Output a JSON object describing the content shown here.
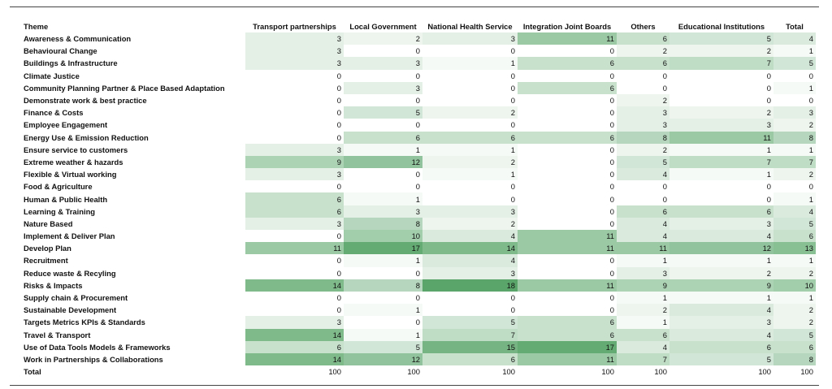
{
  "chart_data": {
    "type": "heatmap",
    "title": "",
    "header_label": "Theme",
    "columns": [
      "Transport partnerships",
      "Local Government",
      "National Health Service",
      "Integration Joint Boards",
      "Others",
      "Educational Institutions",
      "Total"
    ],
    "rows": [
      {
        "theme": "Awareness & Communication",
        "values": [
          3,
          2,
          3,
          11,
          6,
          5,
          4
        ]
      },
      {
        "theme": "Behavioural Change",
        "values": [
          3,
          0,
          0,
          0,
          2,
          2,
          1
        ]
      },
      {
        "theme": "Buildings & Infrastructure",
        "values": [
          3,
          3,
          1,
          6,
          6,
          7,
          5
        ]
      },
      {
        "theme": "Climate Justice",
        "values": [
          0,
          0,
          0,
          0,
          0,
          0,
          0
        ]
      },
      {
        "theme": "Community Planning Partner & Place Based Adaptation",
        "values": [
          0,
          3,
          0,
          6,
          0,
          0,
          1
        ]
      },
      {
        "theme": "Demonstrate work & best practice",
        "values": [
          0,
          0,
          0,
          0,
          2,
          0,
          0
        ]
      },
      {
        "theme": "Finance & Costs",
        "values": [
          0,
          5,
          2,
          0,
          3,
          2,
          3
        ]
      },
      {
        "theme": "Employee Engagement",
        "values": [
          0,
          0,
          0,
          0,
          3,
          3,
          2
        ]
      },
      {
        "theme": "Energy Use & Emission Reduction",
        "values": [
          0,
          6,
          6,
          6,
          8,
          11,
          8
        ]
      },
      {
        "theme": "Ensure service to customers",
        "values": [
          3,
          1,
          1,
          0,
          2,
          1,
          1
        ]
      },
      {
        "theme": "Extreme weather & hazards",
        "values": [
          9,
          12,
          2,
          0,
          5,
          7,
          7
        ]
      },
      {
        "theme": "Flexible & Virtual working",
        "values": [
          3,
          0,
          1,
          0,
          4,
          1,
          2
        ]
      },
      {
        "theme": "Food & Agriculture",
        "values": [
          0,
          0,
          0,
          0,
          0,
          0,
          0
        ]
      },
      {
        "theme": "Human & Public Health",
        "values": [
          6,
          1,
          0,
          0,
          0,
          0,
          1
        ]
      },
      {
        "theme": "Learning & Training",
        "values": [
          6,
          3,
          3,
          0,
          6,
          6,
          4
        ]
      },
      {
        "theme": "Nature Based",
        "values": [
          3,
          8,
          2,
          0,
          4,
          3,
          5
        ]
      },
      {
        "theme": "Implement & Deliver Plan",
        "values": [
          0,
          10,
          4,
          11,
          4,
          4,
          6
        ]
      },
      {
        "theme": "Develop Plan",
        "values": [
          11,
          17,
          14,
          11,
          11,
          12,
          13
        ]
      },
      {
        "theme": "Recruitment",
        "values": [
          0,
          1,
          4,
          0,
          1,
          1,
          1
        ]
      },
      {
        "theme": "Reduce waste & Recyling",
        "values": [
          0,
          0,
          3,
          0,
          3,
          2,
          2
        ]
      },
      {
        "theme": "Risks & Impacts",
        "values": [
          14,
          8,
          18,
          11,
          9,
          9,
          10
        ]
      },
      {
        "theme": "Supply chain & Procurement",
        "values": [
          0,
          0,
          0,
          0,
          1,
          1,
          1
        ]
      },
      {
        "theme": "Sustainable Development",
        "values": [
          0,
          1,
          0,
          0,
          2,
          4,
          2
        ]
      },
      {
        "theme": "Targets Metrics KPIs & Standards",
        "values": [
          3,
          0,
          5,
          6,
          1,
          3,
          2
        ]
      },
      {
        "theme": "Travel & Transport",
        "values": [
          14,
          1,
          7,
          6,
          6,
          4,
          5
        ]
      },
      {
        "theme": "Use of Data Tools Models & Frameworks",
        "values": [
          6,
          5,
          15,
          17,
          4,
          6,
          6
        ]
      },
      {
        "theme": "Work in Partnerships & Collaborations",
        "values": [
          14,
          12,
          6,
          11,
          7,
          5,
          8
        ]
      }
    ],
    "total_row": {
      "theme": "Total",
      "values": [
        100,
        100,
        100,
        100,
        100,
        100,
        100
      ]
    },
    "colors": {
      "low": "#ffffff",
      "high": "#5aa66a"
    },
    "vmax": 18
  }
}
